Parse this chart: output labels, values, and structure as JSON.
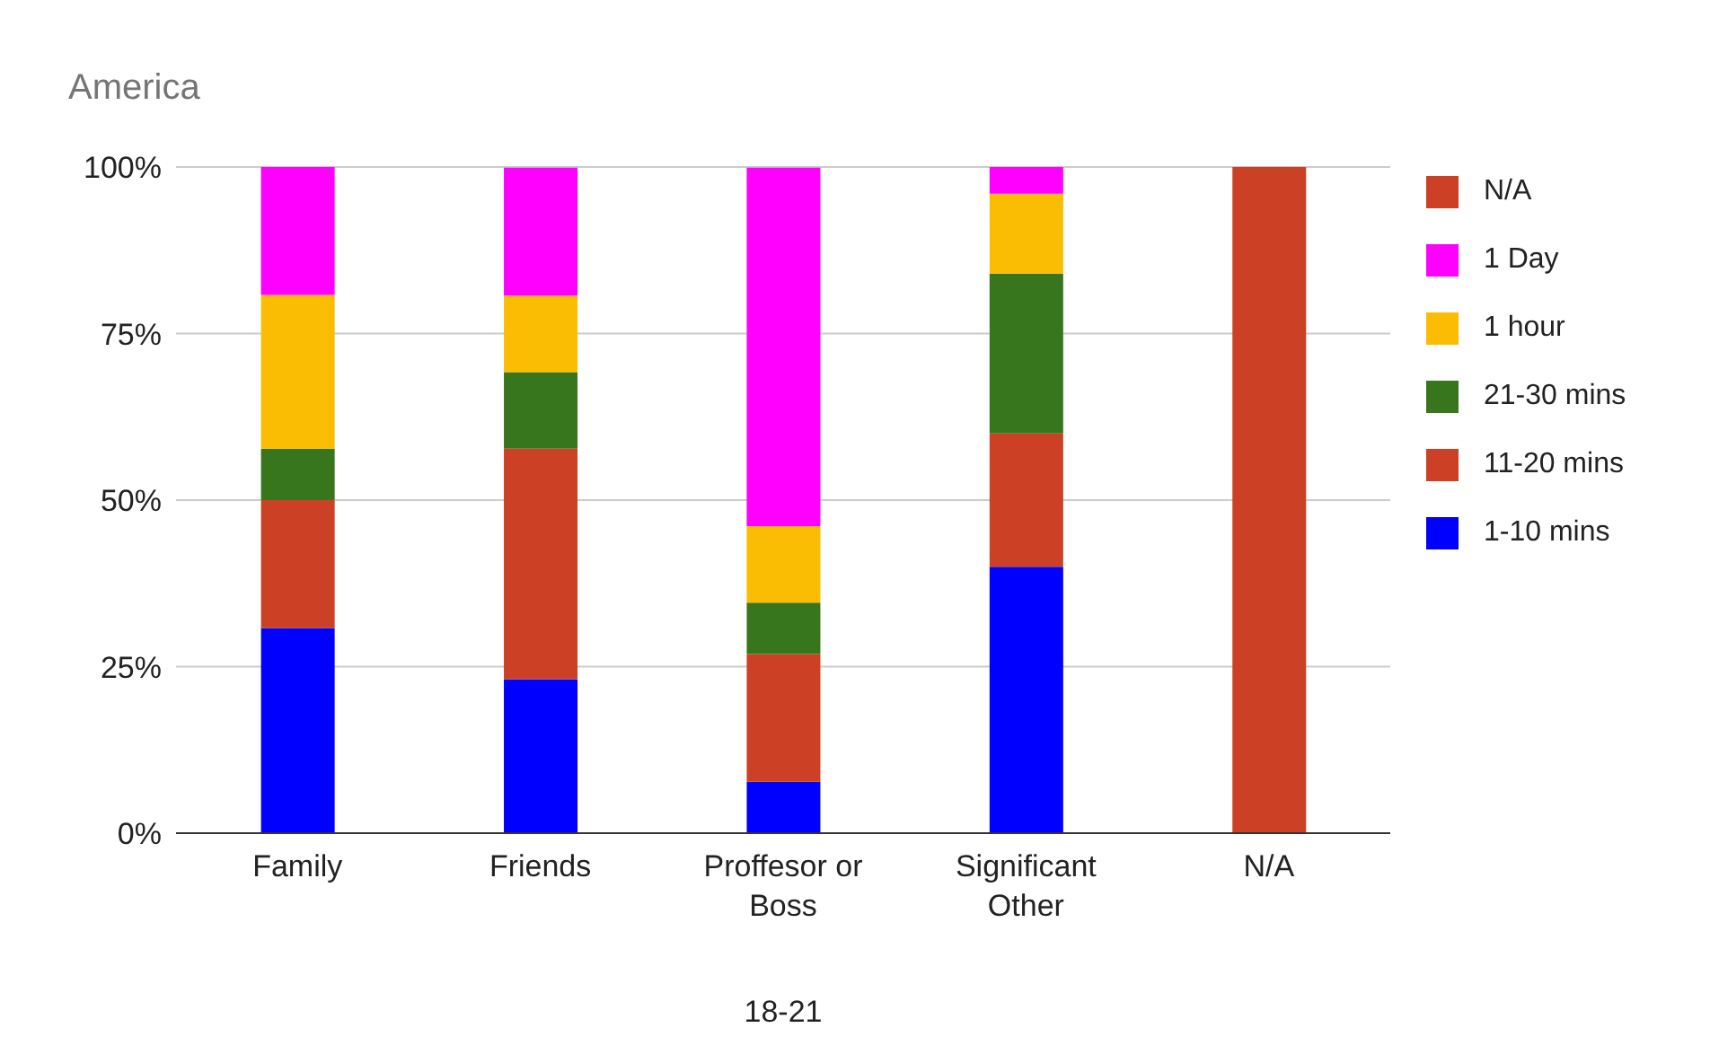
{
  "chart_data": {
    "type": "bar",
    "title": "America",
    "xlabel": "18-21",
    "stacked": true,
    "categories": [
      "Family",
      "Friends",
      "Proffesor or Boss",
      "Significant Other",
      "N/A"
    ],
    "series": [
      {
        "name": "1-10 mins",
        "color": "#0000ff",
        "values": [
          30.8,
          23.1,
          7.7,
          40,
          null
        ]
      },
      {
        "name": "11-20 mins",
        "color": "#cc4125",
        "values": [
          19.2,
          34.6,
          19.2,
          20,
          null
        ]
      },
      {
        "name": "21-30 mins",
        "color": "#38761d",
        "values": [
          7.7,
          11.5,
          7.7,
          24,
          null
        ]
      },
      {
        "name": "1 hour",
        "color": "#fbbc04",
        "values": [
          23.1,
          11.5,
          11.5,
          12,
          null
        ]
      },
      {
        "name": "1 Day",
        "color": "#ff00ff",
        "values": [
          19.2,
          19.2,
          53.8,
          4,
          null
        ]
      },
      {
        "name": "N/A",
        "color": "#cc4125",
        "values": [
          null,
          null,
          null,
          null,
          100
        ]
      }
    ],
    "ylim": [
      0,
      100
    ],
    "yticks": [
      {
        "value": 0,
        "label": "0%"
      },
      {
        "value": 25,
        "label": "25%"
      },
      {
        "value": 50,
        "label": "50%"
      },
      {
        "value": 75,
        "label": "75%"
      },
      {
        "value": 100,
        "label": "100%"
      }
    ],
    "grid": "y",
    "legend": "right"
  }
}
